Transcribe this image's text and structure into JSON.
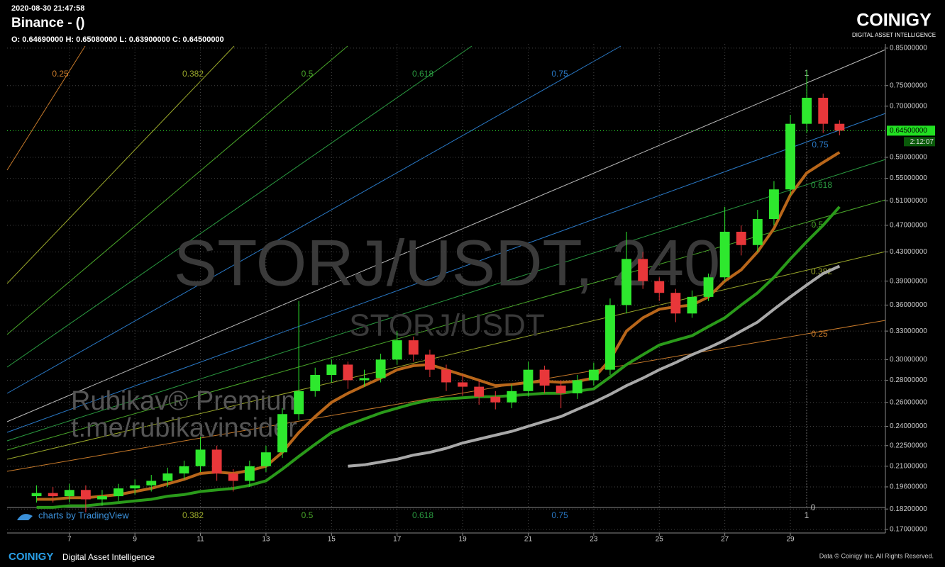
{
  "header": {
    "datetime": "2020-08-30 21:47:58",
    "title": "Binance -  ()",
    "ohlc": "O: 0.64690000 H: 0.65080000 L: 0.63900000 C: 0.64500000"
  },
  "brand": {
    "logo": "COINIGY",
    "tagline": "DIGITAL ASSET INTELLIGENCE"
  },
  "watermark": {
    "main": "STORJ/USDT, 240",
    "sub": "STORJ/USDT",
    "promo1": "Rubikav® Premium",
    "promo2": "t.me/rubikavinsider"
  },
  "attribution": "charts by TradingView",
  "footer": {
    "logo": "COINIGY",
    "tagline": "Digital Asset Intelligence",
    "copyright": "Data © Coinigy Inc.  All Rights Reserved."
  },
  "fib_levels": [
    "0.25",
    "0.382",
    "0.5",
    "0.618",
    "0.75",
    "1",
    "0"
  ],
  "last_price": {
    "value": 0.645,
    "label": "0.64500000"
  },
  "countdown": "2:12:07",
  "chart_data": {
    "type": "candlestick",
    "log": true,
    "grid": true,
    "up_color": "#2ee82e",
    "down_color": "#e8373a",
    "x": [
      6,
      6.5,
      7,
      7.5,
      8,
      8.5,
      9,
      9.5,
      10,
      10.5,
      11,
      11.5,
      12,
      12.5,
      13,
      13.5,
      14,
      14.5,
      15,
      15.5,
      16,
      16.5,
      17,
      17.5,
      18,
      18.5,
      19,
      19.5,
      20,
      20.5,
      21,
      21.5,
      22,
      22.5,
      23,
      23.5,
      24,
      24.5,
      25,
      25.5,
      26,
      26.5,
      27,
      27.5,
      28,
      28.5,
      29,
      29.5,
      30,
      30.5
    ],
    "open": [
      0.19,
      0.192,
      0.19,
      0.194,
      0.188,
      0.19,
      0.195,
      0.197,
      0.2,
      0.205,
      0.21,
      0.222,
      0.205,
      0.2,
      0.21,
      0.22,
      0.25,
      0.27,
      0.285,
      0.295,
      0.28,
      0.282,
      0.3,
      0.32,
      0.305,
      0.29,
      0.278,
      0.274,
      0.265,
      0.26,
      0.27,
      0.29,
      0.275,
      0.268,
      0.28,
      0.29,
      0.36,
      0.42,
      0.39,
      0.375,
      0.35,
      0.37,
      0.395,
      0.46,
      0.44,
      0.48,
      0.53,
      0.66,
      0.72,
      0.66
    ],
    "high": [
      0.197,
      0.196,
      0.198,
      0.197,
      0.194,
      0.198,
      0.201,
      0.204,
      0.209,
      0.214,
      0.232,
      0.225,
      0.208,
      0.214,
      0.225,
      0.255,
      0.365,
      0.292,
      0.3,
      0.298,
      0.29,
      0.306,
      0.33,
      0.324,
      0.31,
      0.295,
      0.285,
      0.28,
      0.27,
      0.276,
      0.298,
      0.294,
      0.28,
      0.285,
      0.297,
      0.368,
      0.46,
      0.43,
      0.395,
      0.38,
      0.378,
      0.4,
      0.5,
      0.47,
      0.495,
      0.545,
      0.68,
      0.79,
      0.73,
      0.668
    ],
    "low": [
      0.186,
      0.186,
      0.186,
      0.18,
      0.184,
      0.187,
      0.191,
      0.193,
      0.196,
      0.201,
      0.206,
      0.2,
      0.193,
      0.196,
      0.206,
      0.216,
      0.245,
      0.265,
      0.278,
      0.272,
      0.274,
      0.278,
      0.295,
      0.298,
      0.283,
      0.27,
      0.266,
      0.258,
      0.254,
      0.255,
      0.265,
      0.268,
      0.255,
      0.263,
      0.275,
      0.285,
      0.35,
      0.38,
      0.365,
      0.34,
      0.345,
      0.365,
      0.39,
      0.425,
      0.43,
      0.47,
      0.52,
      0.64,
      0.64,
      0.635
    ],
    "close": [
      0.192,
      0.19,
      0.194,
      0.188,
      0.19,
      0.195,
      0.197,
      0.2,
      0.205,
      0.21,
      0.222,
      0.205,
      0.2,
      0.21,
      0.22,
      0.25,
      0.27,
      0.285,
      0.295,
      0.28,
      0.282,
      0.3,
      0.32,
      0.305,
      0.29,
      0.278,
      0.274,
      0.265,
      0.26,
      0.27,
      0.29,
      0.275,
      0.268,
      0.28,
      0.29,
      0.36,
      0.42,
      0.39,
      0.375,
      0.35,
      0.37,
      0.395,
      0.46,
      0.44,
      0.48,
      0.53,
      0.66,
      0.72,
      0.66,
      0.645
    ],
    "series": [
      {
        "color": "#2a9a1a",
        "values": [
          0.183,
          0.183,
          0.184,
          0.184,
          0.185,
          0.186,
          0.187,
          0.188,
          0.19,
          0.191,
          0.193,
          0.194,
          0.195,
          0.197,
          0.2,
          0.208,
          0.217,
          0.226,
          0.235,
          0.241,
          0.246,
          0.251,
          0.255,
          0.259,
          0.262,
          0.263,
          0.264,
          0.265,
          0.265,
          0.266,
          0.267,
          0.268,
          0.268,
          0.27,
          0.272,
          0.283,
          0.295,
          0.305,
          0.315,
          0.32,
          0.325,
          0.335,
          0.345,
          0.36,
          0.375,
          0.395,
          0.42,
          0.445,
          0.47,
          0.5
        ]
      },
      {
        "color": "#b8661a",
        "values": [
          0.188,
          0.188,
          0.189,
          0.189,
          0.19,
          0.191,
          0.193,
          0.195,
          0.198,
          0.201,
          0.205,
          0.206,
          0.205,
          0.207,
          0.21,
          0.22,
          0.235,
          0.248,
          0.26,
          0.268,
          0.275,
          0.282,
          0.29,
          0.294,
          0.295,
          0.29,
          0.285,
          0.28,
          0.275,
          0.276,
          0.278,
          0.279,
          0.278,
          0.279,
          0.282,
          0.3,
          0.33,
          0.345,
          0.355,
          0.358,
          0.36,
          0.37,
          0.39,
          0.405,
          0.43,
          0.465,
          0.52,
          0.56,
          0.58,
          0.6
        ]
      },
      {
        "color": "#a8a8a8",
        "values": [
          null,
          null,
          null,
          null,
          null,
          null,
          null,
          null,
          null,
          null,
          null,
          null,
          null,
          null,
          null,
          null,
          null,
          null,
          null,
          0.21,
          0.211,
          0.213,
          0.215,
          0.218,
          0.22,
          0.223,
          0.227,
          0.23,
          0.233,
          0.236,
          0.24,
          0.244,
          0.248,
          0.254,
          0.26,
          0.267,
          0.275,
          0.282,
          0.29,
          0.297,
          0.305,
          0.312,
          0.32,
          0.33,
          0.34,
          0.355,
          0.37,
          0.385,
          0.4,
          0.41
        ]
      }
    ],
    "xlim": [
      5.1,
      31.9
    ],
    "xticks": [
      7,
      9,
      11,
      13,
      15,
      17,
      19,
      21,
      23,
      25,
      27,
      29
    ],
    "ylim": [
      0.168,
      0.862
    ],
    "yticks": [
      {
        "value": 0.85,
        "label": "0.85000000"
      },
      {
        "value": 0.75,
        "label": "0.75000000"
      },
      {
        "value": 0.7,
        "label": "0.70000000"
      },
      {
        "value": 0.59,
        "label": "0.59000000"
      },
      {
        "value": 0.55,
        "label": "0.55000000"
      },
      {
        "value": 0.51,
        "label": "0.51000000"
      },
      {
        "value": 0.47,
        "label": "0.47000000"
      },
      {
        "value": 0.43,
        "label": "0.43000000"
      },
      {
        "value": 0.39,
        "label": "0.39000000"
      },
      {
        "value": 0.36,
        "label": "0.36000000"
      },
      {
        "value": 0.33,
        "label": "0.33000000"
      },
      {
        "value": 0.3,
        "label": "0.30000000"
      },
      {
        "value": 0.28,
        "label": "0.28000000"
      },
      {
        "value": 0.26,
        "label": "0.26000000"
      },
      {
        "value": 0.24,
        "label": "0.24000000"
      },
      {
        "value": 0.225,
        "label": "0.22500000"
      },
      {
        "value": 0.21,
        "label": "0.21000000"
      },
      {
        "value": 0.196,
        "label": "0.19600000"
      },
      {
        "value": 0.182,
        "label": "0.18200000"
      },
      {
        "value": 0.17,
        "label": "0.17000000"
      }
    ]
  }
}
